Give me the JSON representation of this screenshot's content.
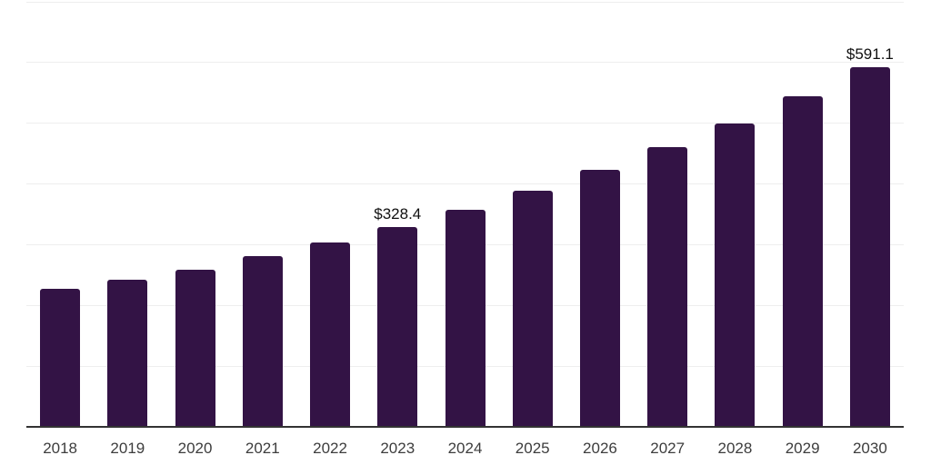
{
  "chart_data": {
    "type": "bar",
    "title": "",
    "xlabel": "",
    "ylabel": "",
    "categories": [
      "2018",
      "2019",
      "2020",
      "2021",
      "2022",
      "2023",
      "2024",
      "2025",
      "2026",
      "2027",
      "2028",
      "2029",
      "2030"
    ],
    "values": [
      227.0,
      242.0,
      258.5,
      281.0,
      303.3,
      328.4,
      357.2,
      388.5,
      422.5,
      459.5,
      499.7,
      543.5,
      591.1
    ],
    "data_labels": {
      "2023": "$328.4",
      "2030": "$591.1"
    },
    "ylim": [
      0,
      700
    ],
    "gridline_step": 100,
    "grid": "horizontal-only",
    "legend": "none",
    "y_tick_labels_visible": false,
    "colors": {
      "bar": "#331345",
      "axis_line": "#333333",
      "gridline": "#eeeeee",
      "x_tick_label": "#3d3d3d",
      "value_label": "#111111",
      "background": "#ffffff"
    }
  }
}
